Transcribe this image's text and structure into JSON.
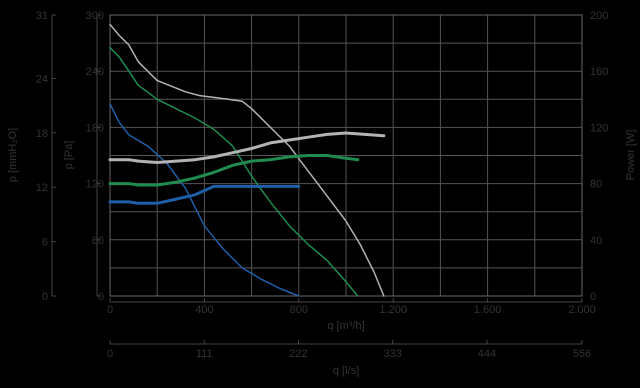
{
  "chart_data": {
    "type": "line",
    "grid": true,
    "legend": "none",
    "x_axis": {
      "label": "q [m³/h]",
      "range": [
        0,
        2000
      ],
      "ticks": [
        0,
        400,
        800,
        1200,
        1600,
        2000
      ],
      "tick_labels": [
        "0",
        "400",
        "800",
        "1.200",
        "1.600",
        "2.000"
      ]
    },
    "x2_axis": {
      "label": "q [l/s]",
      "range": [
        0,
        556
      ],
      "ticks": [
        0,
        111,
        222,
        333,
        444,
        556
      ],
      "tick_labels": [
        "0",
        "111",
        "222",
        "333",
        "444",
        "556"
      ]
    },
    "y_pa_axis": {
      "label": "p [Pa]",
      "range": [
        0,
        300
      ],
      "ticks": [
        0,
        60,
        120,
        180,
        240,
        300
      ],
      "tick_labels": [
        "0",
        "60",
        "120",
        "180",
        "240",
        "300"
      ]
    },
    "y_mmh2o_axis": {
      "label": "p [mmH₂O]",
      "range": [
        0,
        31
      ],
      "ticks": [
        0,
        6,
        12,
        18,
        24,
        31
      ],
      "tick_labels": [
        "0",
        "6",
        "12",
        "18",
        "24",
        "31"
      ]
    },
    "y_power_axis": {
      "label": "Power [W]",
      "range": [
        0,
        200
      ],
      "ticks": [
        0,
        40,
        80,
        120,
        160,
        200
      ],
      "tick_labels": [
        "0",
        "40",
        "80",
        "120",
        "160",
        "200"
      ]
    },
    "series": [
      {
        "kind": "pressure",
        "color": "#1f5fa8",
        "stroke_width": 1.5,
        "x": [
          0,
          40,
          80,
          160,
          240,
          320,
          400,
          480,
          560,
          640,
          720,
          800
        ],
        "y": [
          205,
          185,
          172,
          160,
          142,
          115,
          75,
          50,
          30,
          18,
          8,
          0
        ]
      },
      {
        "kind": "pressure",
        "color": "#1e8c4e",
        "stroke_width": 1.5,
        "x": [
          0,
          40,
          80,
          120,
          200,
          280,
          360,
          440,
          520,
          600,
          680,
          760,
          840,
          920,
          1000,
          1050
        ],
        "y": [
          265,
          255,
          240,
          225,
          210,
          200,
          190,
          178,
          160,
          128,
          100,
          75,
          55,
          38,
          15,
          0
        ]
      },
      {
        "kind": "pressure",
        "color": "#b3b3b3",
        "stroke_width": 1.5,
        "x": [
          0,
          40,
          80,
          120,
          200,
          280,
          320,
          380,
          440,
          500,
          560,
          600,
          640,
          700,
          760,
          820,
          880,
          940,
          1000,
          1060,
          1120,
          1160
        ],
        "y": [
          290,
          278,
          268,
          250,
          230,
          222,
          218,
          214,
          212,
          210,
          208,
          200,
          190,
          175,
          160,
          140,
          120,
          100,
          80,
          55,
          25,
          0
        ]
      },
      {
        "kind": "power",
        "color": "#1f5fa8",
        "stroke_width": 3,
        "x": [
          0,
          40,
          80,
          120,
          200,
          280,
          360,
          440,
          520,
          600,
          680,
          760,
          800
        ],
        "y": [
          67,
          67,
          67,
          66,
          66,
          69,
          72,
          78,
          78,
          78,
          78,
          78,
          78
        ]
      },
      {
        "kind": "power",
        "color": "#1e8c4e",
        "stroke_width": 3,
        "x": [
          0,
          40,
          80,
          120,
          200,
          280,
          360,
          440,
          520,
          600,
          680,
          760,
          840,
          920,
          1000,
          1050
        ],
        "y": [
          80,
          80,
          80,
          79,
          79,
          81,
          84,
          88,
          93,
          96,
          97,
          99,
          100,
          100,
          98,
          97
        ]
      },
      {
        "kind": "power",
        "color": "#b3b3b3",
        "stroke_width": 3,
        "x": [
          0,
          40,
          80,
          120,
          200,
          280,
          360,
          440,
          520,
          600,
          680,
          760,
          840,
          920,
          1000,
          1080,
          1160
        ],
        "y": [
          97,
          97,
          97,
          96,
          95,
          96,
          97,
          99,
          102,
          105,
          109,
          111,
          113,
          115,
          116,
          115,
          114
        ]
      }
    ]
  }
}
